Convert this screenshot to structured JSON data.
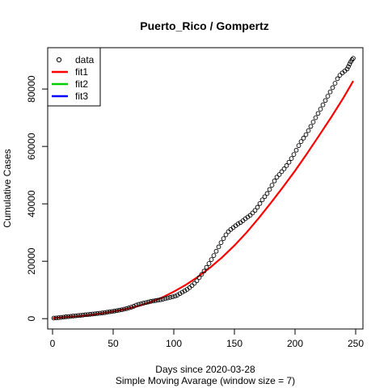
{
  "chart_data": {
    "type": "scatter",
    "title": "Puerto_Rico / Gompertz",
    "xlabel": "Days since 2020-03-28",
    "xlabel2": "Simple Moving Avarage (window size = 7)",
    "ylabel": "Cumulative Cases",
    "xlim": [
      -4,
      256
    ],
    "ylim": [
      -3600,
      94400
    ],
    "x_ticks": [
      0,
      50,
      100,
      150,
      200,
      250
    ],
    "y_ticks": [
      0,
      20000,
      40000,
      60000,
      80000
    ],
    "legend": {
      "position": "top-left",
      "entries": [
        {
          "label": "data",
          "kind": "point",
          "color": "#000000"
        },
        {
          "label": "fit1",
          "kind": "line",
          "color": "#ff0000"
        },
        {
          "label": "fit2",
          "kind": "line",
          "color": "#00cd00"
        },
        {
          "label": "fit3",
          "kind": "line",
          "color": "#0000ff"
        }
      ]
    },
    "series": [
      {
        "name": "data",
        "kind": "points",
        "color": "#000000",
        "x": [
          1,
          3,
          5,
          7,
          9,
          11,
          13,
          15,
          17,
          19,
          21,
          23,
          25,
          27,
          29,
          31,
          33,
          35,
          37,
          39,
          41,
          43,
          45,
          47,
          49,
          51,
          53,
          55,
          57,
          59,
          61,
          63,
          65,
          67,
          69,
          71,
          73,
          75,
          77,
          79,
          81,
          83,
          85,
          87,
          89,
          91,
          93,
          95,
          97,
          99,
          101,
          103,
          105,
          107,
          109,
          111,
          113,
          115,
          117,
          119,
          121,
          123,
          125,
          127,
          129,
          131,
          133,
          135,
          137,
          139,
          141,
          143,
          145,
          147,
          149,
          151,
          153,
          155,
          157,
          159,
          161,
          163,
          165,
          167,
          169,
          171,
          173,
          175,
          177,
          179,
          181,
          183,
          185,
          187,
          189,
          191,
          193,
          195,
          197,
          199,
          201,
          203,
          205,
          207,
          209,
          211,
          213,
          215,
          217,
          219,
          221,
          223,
          225,
          227,
          229,
          231,
          233,
          235,
          237,
          239,
          241,
          243,
          244,
          245,
          246,
          247,
          248
        ],
        "y": [
          200,
          250,
          350,
          450,
          550,
          650,
          700,
          800,
          900,
          1000,
          1100,
          1150,
          1250,
          1350,
          1400,
          1500,
          1600,
          1700,
          1800,
          1900,
          2000,
          2100,
          2250,
          2400,
          2500,
          2650,
          2800,
          2950,
          3100,
          3300,
          3500,
          3750,
          4000,
          4300,
          4700,
          5000,
          5200,
          5400,
          5600,
          5800,
          6000,
          6150,
          6300,
          6450,
          6600,
          6800,
          7000,
          7200,
          7400,
          7600,
          7850,
          8200,
          8700,
          9200,
          9700,
          10200,
          10800,
          11500,
          12300,
          13200,
          14300,
          15400,
          16600,
          17900,
          19200,
          20600,
          22000,
          23500,
          25000,
          26500,
          27900,
          29200,
          30300,
          31100,
          31700,
          32400,
          33000,
          33500,
          34100,
          34800,
          35400,
          36000,
          36800,
          37700,
          38800,
          40100,
          41400,
          42500,
          43600,
          45000,
          46500,
          48000,
          49300,
          50200,
          51200,
          52200,
          53300,
          54500,
          55800,
          57200,
          58700,
          60300,
          61700,
          62900,
          64100,
          65500,
          67000,
          68500,
          70000,
          71500,
          73000,
          74500,
          76000,
          77500,
          79000,
          80500,
          82000,
          83600,
          84800,
          85600,
          86300,
          87000,
          87800,
          88700,
          89500,
          90200,
          90700
        ]
      },
      {
        "name": "fit1",
        "kind": "line",
        "color": "#ff0000",
        "x": [
          0,
          10,
          20,
          30,
          40,
          50,
          60,
          70,
          80,
          90,
          100,
          110,
          120,
          130,
          140,
          150,
          160,
          170,
          180,
          190,
          200,
          210,
          220,
          230,
          240,
          248
        ],
        "y": [
          150,
          500,
          800,
          1200,
          1800,
          2500,
          3300,
          4300,
          5600,
          7300,
          9400,
          11800,
          14600,
          17800,
          21400,
          25500,
          30000,
          35000,
          40300,
          45800,
          51500,
          57600,
          63900,
          70300,
          77000,
          82800
        ]
      },
      {
        "name": "fit2",
        "kind": "line",
        "color": "#00cd00",
        "x": [],
        "y": []
      },
      {
        "name": "fit3",
        "kind": "line",
        "color": "#0000ff",
        "x": [],
        "y": []
      }
    ]
  }
}
